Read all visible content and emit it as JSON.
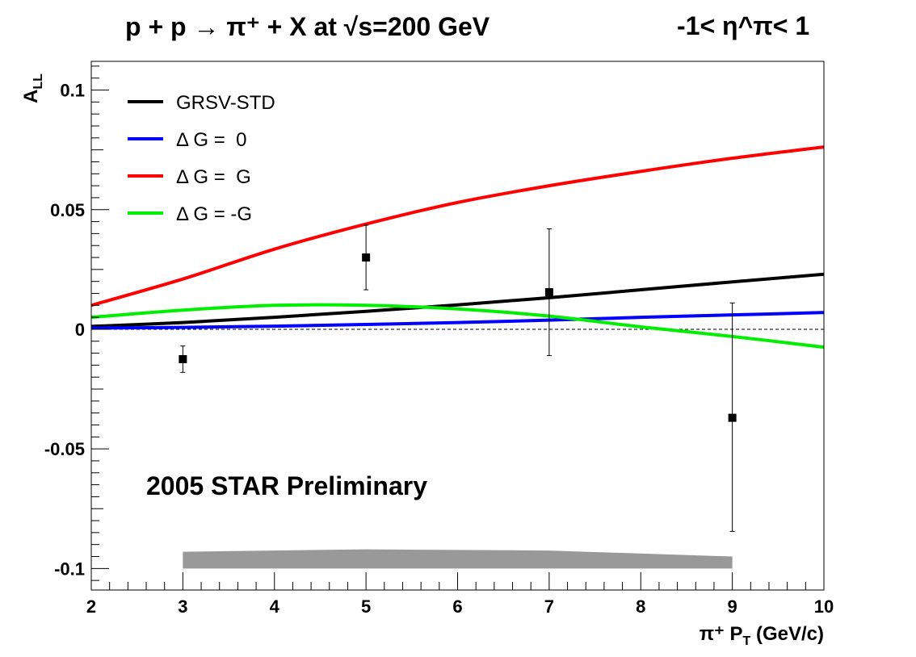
{
  "title": {
    "main": "p + p → π⁺ + X at √s=200 GeV",
    "eta_range": "-1< η^π< 1"
  },
  "watermark": "2005 STAR Preliminary",
  "chart_data": {
    "type": "scatter",
    "title": "p + p → π⁺ + X at √s=200 GeV",
    "xlabel": "π⁺ P_T (GeV/c)",
    "ylabel": "A_LL",
    "xlim": [
      2,
      10
    ],
    "ylim": [
      -0.109,
      0.112
    ],
    "x_ticks": [
      2,
      3,
      4,
      5,
      6,
      7,
      8,
      9,
      10
    ],
    "y_ticks": [
      -0.1,
      -0.05,
      0,
      0.05,
      0.1
    ],
    "x_tick_labels": [
      "2",
      "3",
      "4",
      "5",
      "6",
      "7",
      "8",
      "9",
      "10"
    ],
    "y_tick_labels": [
      "-0.1",
      "-0.05",
      "0",
      "0.05",
      "0.1"
    ],
    "grid": false,
    "legend_position": "top-left",
    "zero_line": true,
    "data_points": {
      "x": [
        3,
        5,
        7,
        9
      ],
      "y": [
        -0.0125,
        0.03,
        0.0155,
        -0.037
      ],
      "err_low": [
        0.0055,
        0.0135,
        0.0265,
        0.0475
      ],
      "err_high": [
        0.0055,
        0.0135,
        0.0265,
        0.048
      ],
      "color": "#000000"
    },
    "systematic_band": {
      "x": [
        3,
        5,
        7,
        9
      ],
      "top": [
        -0.093,
        -0.092,
        -0.0925,
        -0.095
      ],
      "bottom": [
        -0.1,
        -0.1,
        -0.1,
        -0.1
      ],
      "color": "#999999"
    },
    "series": [
      {
        "name": "GRSV-STD",
        "color": "#000000",
        "x": [
          2,
          3,
          4,
          5,
          6,
          7,
          8,
          9,
          10
        ],
        "y": [
          0.0012,
          0.0028,
          0.005,
          0.0075,
          0.0102,
          0.0132,
          0.0165,
          0.0198,
          0.023
        ]
      },
      {
        "name": "Δ G =  0",
        "color": "#0000ff",
        "x": [
          2,
          3,
          4,
          5,
          6,
          7,
          8,
          9,
          10
        ],
        "y": [
          0.0005,
          0.0008,
          0.0013,
          0.002,
          0.0028,
          0.0038,
          0.005,
          0.006,
          0.007
        ]
      },
      {
        "name": "Δ G =  G",
        "color": "#ff0000",
        "x": [
          2,
          3,
          4,
          5,
          6,
          7,
          8,
          9,
          10
        ],
        "y": [
          0.01,
          0.021,
          0.0335,
          0.044,
          0.053,
          0.06,
          0.066,
          0.0715,
          0.0762
        ]
      },
      {
        "name": "Δ G = -G",
        "color": "#00ee00",
        "x": [
          2,
          3,
          4,
          5,
          6,
          7,
          8,
          9,
          10
        ],
        "y": [
          0.005,
          0.008,
          0.01,
          0.01,
          0.0085,
          0.0055,
          0.001,
          -0.003,
          -0.0075
        ]
      }
    ]
  }
}
